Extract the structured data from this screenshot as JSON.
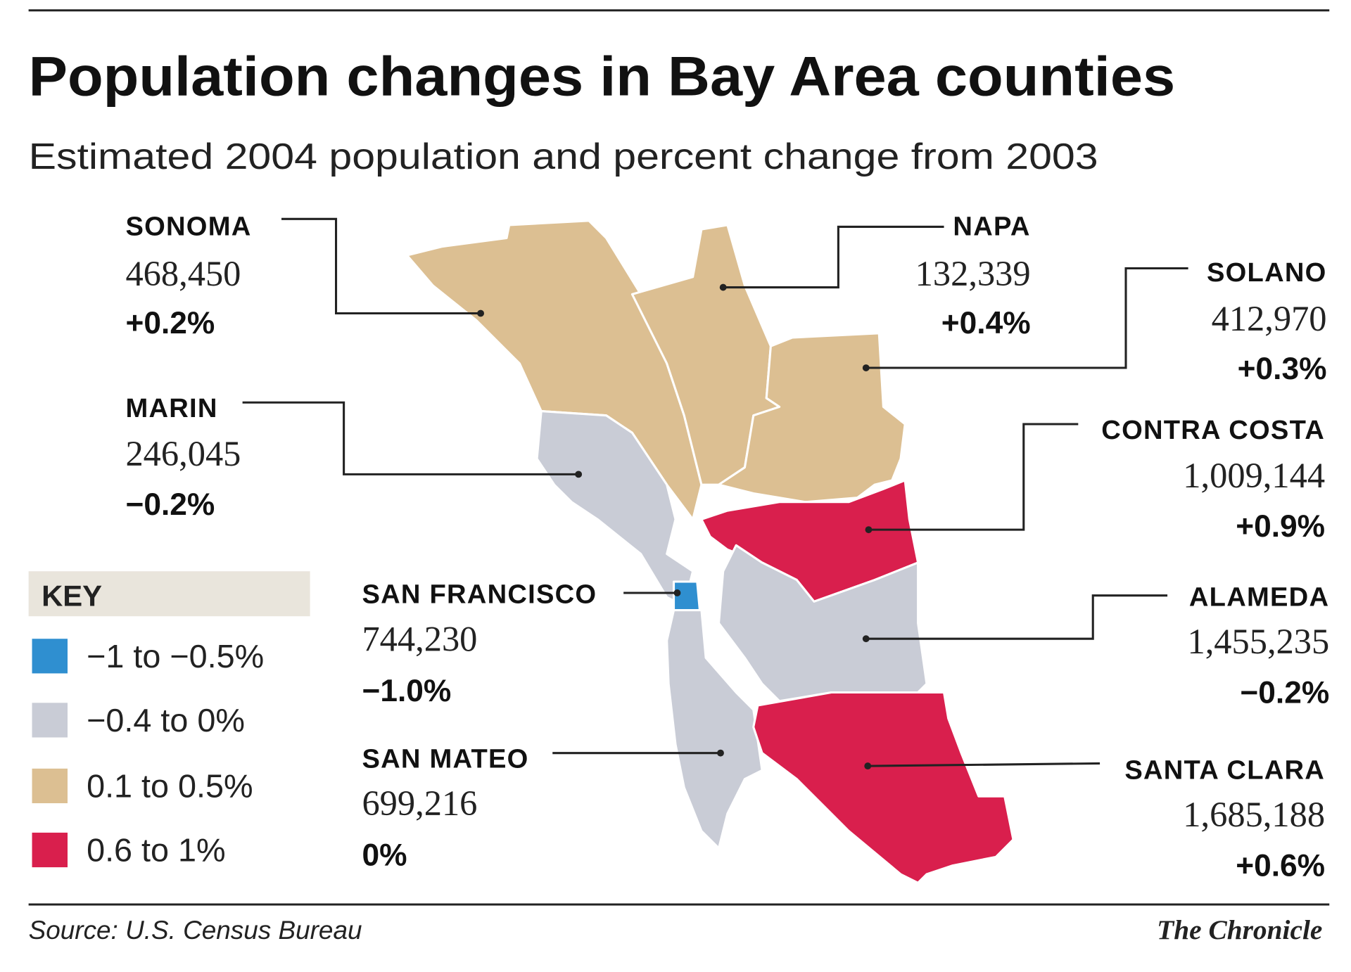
{
  "chart_data": {
    "type": "choropleth",
    "title": "Population changes in Bay Area counties",
    "subtitle": "Estimated 2004 population and percent change from 2003",
    "counties": [
      {
        "name": "SONOMA",
        "population": "468,450",
        "change": "+0.2%",
        "change_value": 0.2,
        "class": "tan"
      },
      {
        "name": "NAPA",
        "population": "132,339",
        "change": "+0.4%",
        "change_value": 0.4,
        "class": "tan"
      },
      {
        "name": "SOLANO",
        "population": "412,970",
        "change": "+0.3%",
        "change_value": 0.3,
        "class": "tan"
      },
      {
        "name": "MARIN",
        "population": "246,045",
        "change": "−0.2%",
        "change_value": -0.2,
        "class": "gray"
      },
      {
        "name": "CONTRA COSTA",
        "population": "1,009,144",
        "change": "+0.9%",
        "change_value": 0.9,
        "class": "red"
      },
      {
        "name": "SAN FRANCISCO",
        "population": "744,230",
        "change": "−1.0%",
        "change_value": -1.0,
        "class": "blue"
      },
      {
        "name": "ALAMEDA",
        "population": "1,455,235",
        "change": "−0.2%",
        "change_value": -0.2,
        "class": "gray"
      },
      {
        "name": "SAN MATEO",
        "population": "699,216",
        "change": "0%",
        "change_value": 0,
        "class": "gray"
      },
      {
        "name": "SANTA CLARA",
        "population": "1,685,188",
        "change": "+0.6%",
        "change_value": 0.6,
        "class": "red"
      }
    ],
    "legend": {
      "title": "KEY",
      "items": [
        {
          "label": "−1 to −0.5%",
          "class": "blue"
        },
        {
          "label": "−0.4 to 0%",
          "class": "gray"
        },
        {
          "label": "0.1 to 0.5%",
          "class": "tan"
        },
        {
          "label": "0.6 to 1%",
          "class": "red"
        }
      ]
    },
    "colors": {
      "blue": "#2f8fd0",
      "gray": "#c9ccd6",
      "tan": "#dcbf92",
      "red": "#d91f4d",
      "key_bg": "#e9e5dc"
    }
  },
  "footer": {
    "source": "Source: U.S. Census Bureau",
    "credit": "The Chronicle"
  }
}
